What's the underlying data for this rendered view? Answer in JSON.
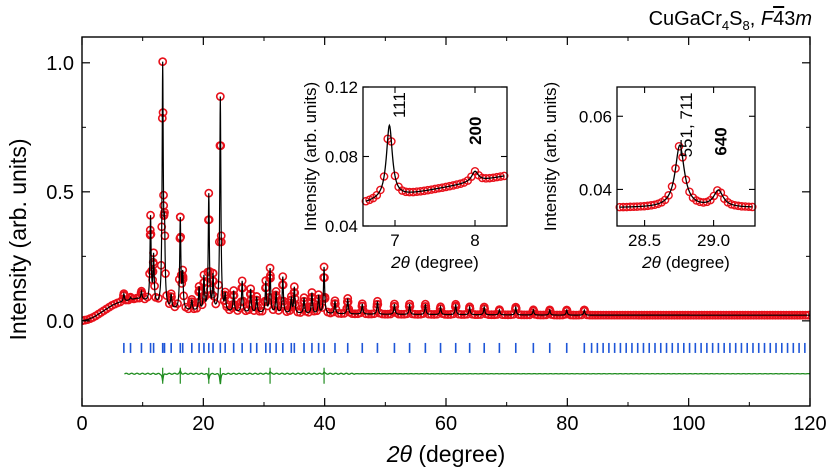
{
  "title": {
    "formula_base": "CuGaCr",
    "formula_sub1": "4",
    "formula_mid": "S",
    "formula_sub2": "8",
    "separator": ", ",
    "space_group_F": "F",
    "space_group_bar": "4",
    "space_group_rest": "3",
    "space_group_m": "m"
  },
  "chart_data": [
    {
      "type": "scatter",
      "id": "main",
      "xlabel_symbol": "2θ",
      "xlabel_unit": " (degree)",
      "ylabel": "Intensity (arb. units)",
      "xlim": [
        0,
        120
      ],
      "ylim": [
        -0.33,
        1.1
      ],
      "xticks": [
        0,
        20,
        40,
        60,
        80,
        100,
        120
      ],
      "yticks": [
        0.0,
        0.5,
        1.0
      ],
      "ytick_labels": [
        "0.0",
        "0.5",
        "1.0"
      ],
      "grid": false,
      "background": {
        "x": [
          0,
          1,
          2,
          3,
          4,
          5,
          6,
          7,
          8,
          9,
          10,
          11,
          12,
          14,
          16,
          18,
          20,
          22,
          25,
          30,
          35,
          40,
          50,
          60,
          70,
          80,
          90,
          100,
          110,
          120
        ],
        "y": [
          0.0,
          0.005,
          0.015,
          0.03,
          0.045,
          0.06,
          0.07,
          0.075,
          0.08,
          0.085,
          0.08,
          0.07,
          0.06,
          0.045,
          0.04,
          0.038,
          0.035,
          0.035,
          0.033,
          0.03,
          0.028,
          0.027,
          0.025,
          0.024,
          0.023,
          0.022,
          0.022,
          0.022,
          0.022,
          0.022
        ]
      },
      "peaks": {
        "x": [
          6.9,
          8.0,
          9.8,
          11.3,
          11.8,
          13.3,
          13.6,
          14.7,
          16.2,
          16.6,
          18.1,
          19.3,
          20.1,
          20.9,
          21.6,
          22.8,
          23.6,
          25.0,
          26.4,
          27.8,
          28.8,
          30.3,
          31.0,
          32.0,
          33.1,
          34.5,
          35.0,
          36.6,
          37.9,
          39.0,
          39.9,
          41.7,
          43.8,
          46.2,
          48.7,
          51.5,
          54.0,
          56.6,
          59.1,
          61.6,
          63.9,
          66.3,
          68.8,
          71.5,
          74.4,
          77.1,
          79.9,
          82.8
        ],
        "h": [
          0.03,
          0.01,
          0.03,
          0.33,
          0.18,
          0.92,
          0.26,
          0.05,
          0.35,
          0.13,
          0.04,
          0.09,
          0.13,
          0.45,
          0.13,
          0.83,
          0.06,
          0.08,
          0.12,
          0.09,
          0.06,
          0.12,
          0.17,
          0.08,
          0.14,
          0.06,
          0.1,
          0.06,
          0.08,
          0.07,
          0.18,
          0.05,
          0.06,
          0.04,
          0.05,
          0.04,
          0.04,
          0.04,
          0.03,
          0.04,
          0.03,
          0.03,
          0.02,
          0.03,
          0.02,
          0.02,
          0.02,
          0.02
        ]
      },
      "data_color": "#e8101a",
      "fit_color": "#000000",
      "bragg_color": "#1e56d8",
      "diff_color": "#1f8c1f",
      "bragg_y": -0.105,
      "diff_baseline": -0.205,
      "diff_spikes": [
        {
          "x": 13.3,
          "d": -0.03
        },
        {
          "x": 16.2,
          "d": 0.012
        },
        {
          "x": 20.9,
          "d": -0.022
        },
        {
          "x": 22.8,
          "d": -0.04
        },
        {
          "x": 31.0,
          "d": 0.008
        },
        {
          "x": 39.9,
          "d": 0.006
        }
      ]
    },
    {
      "type": "scatter",
      "id": "inset1",
      "xlabel_symbol": "2θ",
      "xlabel_unit": " (degree)",
      "ylabel": "Intensity (arb. units)",
      "xlim": [
        6.6,
        8.4
      ],
      "ylim": [
        0.04,
        0.12
      ],
      "xticks": [
        7,
        8
      ],
      "xtick_labels": [
        "7",
        "8"
      ],
      "yticks": [
        0.04,
        0.08,
        0.12
      ],
      "ytick_labels": [
        "0.04",
        "0.08",
        "0.12"
      ],
      "annotations": [
        {
          "text": "111",
          "x": 7.05,
          "y": 0.117,
          "bold": false
        },
        {
          "text": "200",
          "x": 8.0,
          "y": 0.103,
          "bold": true
        }
      ],
      "baseline": {
        "x0": 6.6,
        "y0": 0.053,
        "x1": 8.4,
        "y1": 0.069
      },
      "peaks": [
        {
          "x": 6.93,
          "h": 0.042,
          "w": 0.045
        },
        {
          "x": 8.0,
          "h": 0.006,
          "w": 0.05
        }
      ]
    },
    {
      "type": "scatter",
      "id": "inset2",
      "xlabel_symbol": "2θ",
      "xlabel_unit": " (degree)",
      "ylabel": "Intensity (arb. units)",
      "xlim": [
        28.3,
        29.3
      ],
      "ylim": [
        0.03,
        0.068
      ],
      "xticks": [
        28.5,
        29.0
      ],
      "xtick_labels": [
        "28.5",
        "29.0"
      ],
      "yticks": [
        0.04,
        0.06
      ],
      "ytick_labels": [
        "0.04",
        "0.06"
      ],
      "annotations": [
        {
          "text": "551, 711",
          "x": 28.8,
          "y": 0.0665,
          "bold": false
        },
        {
          "text": "640",
          "x": 29.05,
          "y": 0.057,
          "bold": true
        }
      ],
      "baseline": {
        "x0": 28.3,
        "y0": 0.035,
        "x1": 29.3,
        "y1": 0.035
      },
      "peaks": [
        {
          "x": 28.755,
          "h": 0.017,
          "w": 0.04
        },
        {
          "x": 29.035,
          "h": 0.0045,
          "w": 0.042
        }
      ]
    }
  ]
}
